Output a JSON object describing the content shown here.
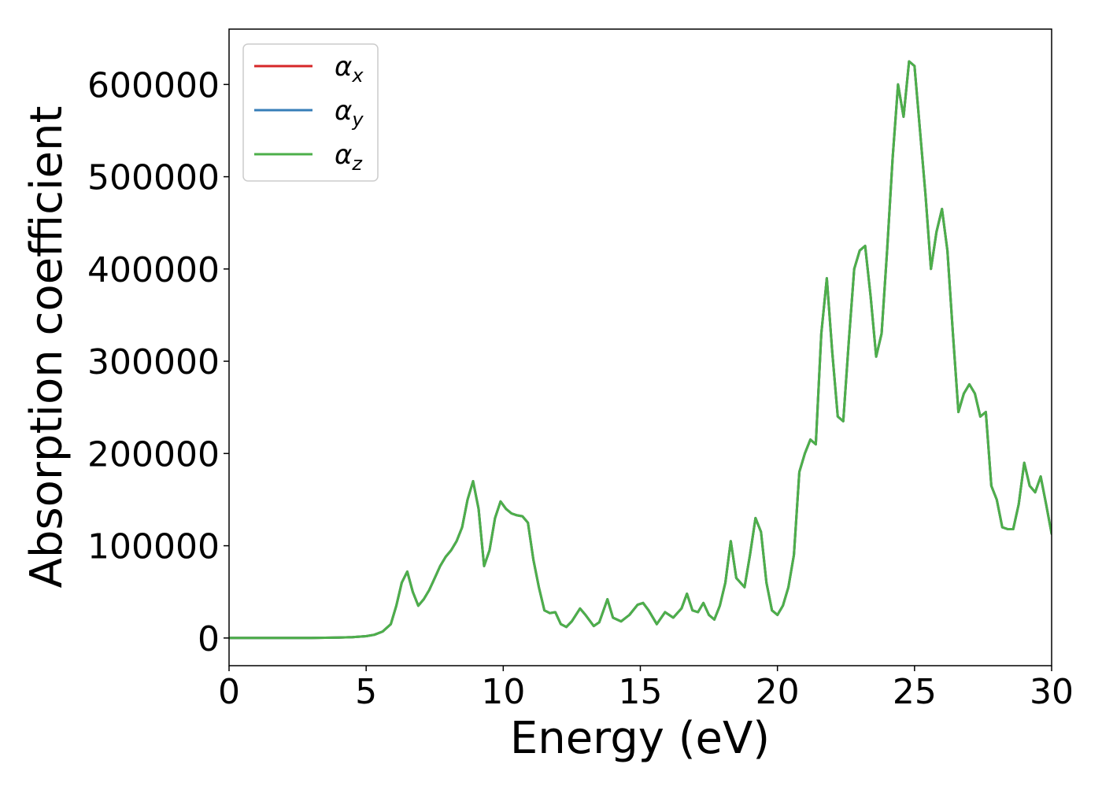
{
  "chart_data": {
    "type": "line",
    "title": "",
    "xlabel": "Energy (eV)",
    "ylabel": "Absorption coefficient",
    "xlim": [
      0,
      30
    ],
    "ylim": [
      -30000,
      660000
    ],
    "xticks": [
      0,
      5,
      10,
      15,
      20,
      25,
      30
    ],
    "xtick_labels": [
      "0",
      "5",
      "10",
      "15",
      "20",
      "25",
      "30"
    ],
    "yticks": [
      0,
      100000,
      200000,
      300000,
      400000,
      500000,
      600000
    ],
    "ytick_labels": [
      "0",
      "100000",
      "200000",
      "300000",
      "400000",
      "500000",
      "600000"
    ],
    "grid": false,
    "legend_placement": "upper-left",
    "x": [
      0,
      1,
      2,
      3,
      4,
      4.5,
      5,
      5.3,
      5.6,
      5.9,
      6.1,
      6.3,
      6.5,
      6.7,
      6.9,
      7.1,
      7.3,
      7.5,
      7.7,
      7.9,
      8.1,
      8.3,
      8.5,
      8.7,
      8.9,
      9.1,
      9.3,
      9.5,
      9.7,
      9.9,
      10.1,
      10.3,
      10.5,
      10.7,
      10.9,
      11.1,
      11.3,
      11.5,
      11.7,
      11.9,
      12.1,
      12.3,
      12.5,
      12.8,
      13.0,
      13.3,
      13.5,
      13.8,
      14.0,
      14.3,
      14.6,
      14.9,
      15.1,
      15.3,
      15.6,
      15.9,
      16.2,
      16.5,
      16.7,
      16.9,
      17.1,
      17.3,
      17.5,
      17.7,
      17.9,
      18.1,
      18.3,
      18.5,
      18.8,
      19.0,
      19.2,
      19.4,
      19.6,
      19.8,
      20.0,
      20.2,
      20.4,
      20.6,
      20.8,
      21.0,
      21.2,
      21.4,
      21.6,
      21.8,
      22.0,
      22.2,
      22.4,
      22.6,
      22.8,
      23.0,
      23.2,
      23.4,
      23.6,
      23.8,
      24.0,
      24.2,
      24.4,
      24.6,
      24.8,
      25.0,
      25.2,
      25.4,
      25.6,
      25.8,
      26.0,
      26.2,
      26.4,
      26.6,
      26.8,
      27.0,
      27.2,
      27.4,
      27.6,
      27.8,
      28.0,
      28.2,
      28.4,
      28.6,
      28.8,
      29.0,
      29.2,
      29.4,
      29.6,
      29.8,
      30.0
    ],
    "series": [
      {
        "name": "αx",
        "color": "#d62728",
        "values": [
          0,
          0,
          0,
          0,
          500,
          1000,
          2000,
          3500,
          7000,
          15000,
          35000,
          60000,
          72000,
          50000,
          35000,
          42000,
          52000,
          65000,
          78000,
          88000,
          95000,
          105000,
          120000,
          150000,
          170000,
          140000,
          78000,
          95000,
          130000,
          148000,
          140000,
          135000,
          133000,
          132000,
          125000,
          85000,
          55000,
          30000,
          27000,
          28000,
          15000,
          12000,
          18000,
          32000,
          25000,
          13000,
          17000,
          42000,
          22000,
          18000,
          25000,
          36000,
          38000,
          30000,
          15000,
          28000,
          22000,
          32000,
          48000,
          30000,
          28000,
          38000,
          25000,
          20000,
          35000,
          60000,
          105000,
          65000,
          55000,
          90000,
          130000,
          115000,
          60000,
          30000,
          25000,
          35000,
          55000,
          90000,
          180000,
          200000,
          215000,
          210000,
          330000,
          390000,
          310000,
          240000,
          235000,
          320000,
          400000,
          420000,
          425000,
          370000,
          305000,
          330000,
          420000,
          520000,
          600000,
          565000,
          625000,
          620000,
          550000,
          480000,
          400000,
          440000,
          465000,
          420000,
          330000,
          245000,
          265000,
          275000,
          265000,
          240000,
          245000,
          165000,
          150000,
          120000,
          118000,
          118000,
          145000,
          190000,
          165000,
          158000,
          175000,
          145000,
          113000
        ]
      },
      {
        "name": "αy",
        "color": "#377eb8",
        "values": [
          0,
          0,
          0,
          0,
          500,
          1000,
          2000,
          3500,
          7000,
          15000,
          35000,
          60000,
          72000,
          50000,
          35000,
          42000,
          52000,
          65000,
          78000,
          88000,
          95000,
          105000,
          120000,
          150000,
          170000,
          140000,
          78000,
          95000,
          130000,
          148000,
          140000,
          135000,
          133000,
          132000,
          125000,
          85000,
          55000,
          30000,
          27000,
          28000,
          15000,
          12000,
          18000,
          32000,
          25000,
          13000,
          17000,
          42000,
          22000,
          18000,
          25000,
          36000,
          38000,
          30000,
          15000,
          28000,
          22000,
          32000,
          48000,
          30000,
          28000,
          38000,
          25000,
          20000,
          35000,
          60000,
          105000,
          65000,
          55000,
          90000,
          130000,
          115000,
          60000,
          30000,
          25000,
          35000,
          55000,
          90000,
          180000,
          200000,
          215000,
          210000,
          330000,
          390000,
          310000,
          240000,
          235000,
          320000,
          400000,
          420000,
          425000,
          370000,
          305000,
          330000,
          420000,
          520000,
          600000,
          565000,
          625000,
          620000,
          550000,
          480000,
          400000,
          440000,
          465000,
          420000,
          330000,
          245000,
          265000,
          275000,
          265000,
          240000,
          245000,
          165000,
          150000,
          120000,
          118000,
          118000,
          145000,
          190000,
          165000,
          158000,
          175000,
          145000,
          113000
        ]
      },
      {
        "name": "αz",
        "color": "#4daf4a",
        "values": [
          0,
          0,
          0,
          0,
          500,
          1000,
          2000,
          3500,
          7000,
          15000,
          35000,
          60000,
          72000,
          50000,
          35000,
          42000,
          52000,
          65000,
          78000,
          88000,
          95000,
          105000,
          120000,
          150000,
          170000,
          140000,
          78000,
          95000,
          130000,
          148000,
          140000,
          135000,
          133000,
          132000,
          125000,
          85000,
          55000,
          30000,
          27000,
          28000,
          15000,
          12000,
          18000,
          32000,
          25000,
          13000,
          17000,
          42000,
          22000,
          18000,
          25000,
          36000,
          38000,
          30000,
          15000,
          28000,
          22000,
          32000,
          48000,
          30000,
          28000,
          38000,
          25000,
          20000,
          35000,
          60000,
          105000,
          65000,
          55000,
          90000,
          130000,
          115000,
          60000,
          30000,
          25000,
          35000,
          55000,
          90000,
          180000,
          200000,
          215000,
          210000,
          330000,
          390000,
          310000,
          240000,
          235000,
          320000,
          400000,
          420000,
          425000,
          370000,
          305000,
          330000,
          420000,
          520000,
          600000,
          565000,
          625000,
          620000,
          550000,
          480000,
          400000,
          440000,
          465000,
          420000,
          330000,
          245000,
          265000,
          275000,
          265000,
          240000,
          245000,
          165000,
          150000,
          120000,
          118000,
          118000,
          145000,
          190000,
          165000,
          158000,
          175000,
          145000,
          113000
        ]
      }
    ],
    "legend": [
      {
        "symbol": "α",
        "sub": "x",
        "color": "#d62728"
      },
      {
        "symbol": "α",
        "sub": "y",
        "color": "#377eb8"
      },
      {
        "symbol": "α",
        "sub": "z",
        "color": "#4daf4a"
      }
    ]
  }
}
